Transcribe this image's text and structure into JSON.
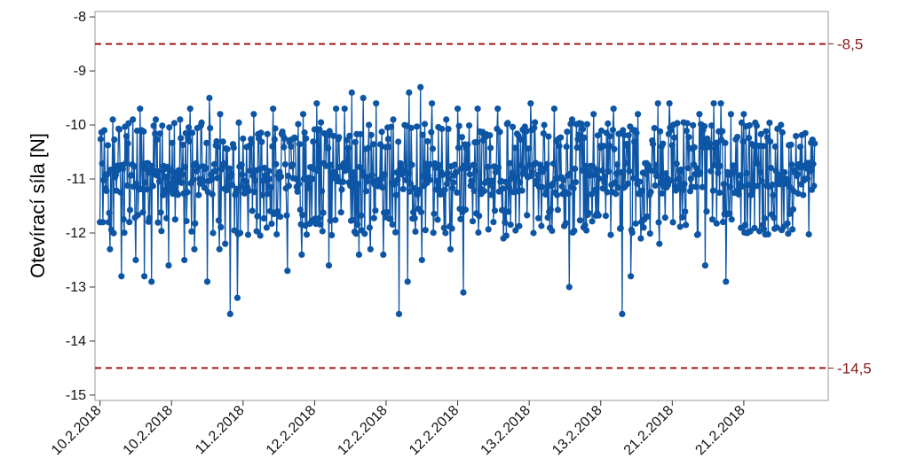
{
  "chart_data": {
    "type": "line",
    "title": "",
    "xlabel": "",
    "ylabel": "Otevírací síla [N]",
    "ylim": [
      -15.1,
      -7.9
    ],
    "yticks": [
      -8,
      -9,
      -10,
      -11,
      -12,
      -13,
      -14,
      -15
    ],
    "xlim": [
      -7,
      1018
    ],
    "xticks": [
      {
        "at": 0,
        "label": "10.2.2018"
      },
      {
        "at": 100,
        "label": "10.2.2018"
      },
      {
        "at": 200,
        "label": "11.2.2018"
      },
      {
        "at": 300,
        "label": "12.2.2018"
      },
      {
        "at": 400,
        "label": "12.2.2018"
      },
      {
        "at": 500,
        "label": "12.2.2018"
      },
      {
        "at": 600,
        "label": "13.2.2018"
      },
      {
        "at": 700,
        "label": "13.2.2018"
      },
      {
        "at": 800,
        "label": "21.2.2018"
      },
      {
        "at": 900,
        "label": "21.2.2018"
      }
    ],
    "reference_lines": [
      {
        "value": -8.5,
        "label": "-8,5"
      },
      {
        "value": -14.5,
        "label": "-14,5"
      }
    ],
    "grid": false,
    "legend": "none",
    "series": [
      {
        "n_points": 1000,
        "baseline": -11.0,
        "band": [
          -10.2,
          -11.8
        ],
        "highs": [
          [
            6,
            -10.1
          ],
          [
            18,
            -9.9
          ],
          [
            30,
            -10.0
          ],
          [
            46,
            -9.9
          ],
          [
            56,
            -9.7
          ],
          [
            78,
            -9.9
          ],
          [
            112,
            -9.9
          ],
          [
            126,
            -9.7
          ],
          [
            153,
            -9.5
          ],
          [
            168,
            -9.8
          ],
          [
            192,
            -9.6
          ],
          [
            215,
            -9.8
          ],
          [
            242,
            -9.7
          ],
          [
            284,
            -9.8
          ],
          [
            303,
            -9.6
          ],
          [
            330,
            -9.7
          ],
          [
            342,
            -9.7
          ],
          [
            352,
            -9.4
          ],
          [
            368,
            -9.5
          ],
          [
            386,
            -9.6
          ],
          [
            410,
            -9.9
          ],
          [
            432,
            -9.4
          ],
          [
            448,
            -9.3
          ],
          [
            464,
            -9.6
          ],
          [
            484,
            -9.9
          ],
          [
            500,
            -9.7
          ],
          [
            528,
            -9.7
          ],
          [
            556,
            -9.7
          ],
          [
            602,
            -9.6
          ],
          [
            635,
            -9.7
          ],
          [
            660,
            -9.9
          ],
          [
            690,
            -9.8
          ],
          [
            718,
            -9.7
          ],
          [
            752,
            -9.8
          ],
          [
            780,
            -9.6
          ],
          [
            796,
            -9.6
          ],
          [
            838,
            -9.8
          ],
          [
            858,
            -9.6
          ],
          [
            868,
            -9.6
          ],
          [
            882,
            -9.8
          ],
          [
            900,
            -9.8
          ]
        ],
        "lows": [
          [
            4,
            -11.8
          ],
          [
            14,
            -12.3
          ],
          [
            30,
            -12.8
          ],
          [
            50,
            -12.5
          ],
          [
            62,
            -12.8
          ],
          [
            72,
            -12.9
          ],
          [
            96,
            -12.6
          ],
          [
            118,
            -12.5
          ],
          [
            132,
            -12.3
          ],
          [
            150,
            -12.9
          ],
          [
            158,
            -12.0
          ],
          [
            167,
            -12.3
          ],
          [
            175,
            -12.2
          ],
          [
            182,
            -13.5
          ],
          [
            192,
            -13.2
          ],
          [
            262,
            -12.7
          ],
          [
            282,
            -12.4
          ],
          [
            320,
            -12.6
          ],
          [
            362,
            -12.4
          ],
          [
            378,
            -12.3
          ],
          [
            396,
            -12.4
          ],
          [
            418,
            -13.5
          ],
          [
            430,
            -12.9
          ],
          [
            450,
            -12.5
          ],
          [
            490,
            -12.3
          ],
          [
            508,
            -13.1
          ],
          [
            564,
            -12.1
          ],
          [
            606,
            -12.0
          ],
          [
            656,
            -13.0
          ],
          [
            730,
            -13.5
          ],
          [
            742,
            -12.8
          ],
          [
            756,
            -12.1
          ],
          [
            782,
            -12.2
          ],
          [
            846,
            -12.6
          ],
          [
            875,
            -12.9
          ],
          [
            905,
            -12.0
          ]
        ]
      }
    ]
  }
}
